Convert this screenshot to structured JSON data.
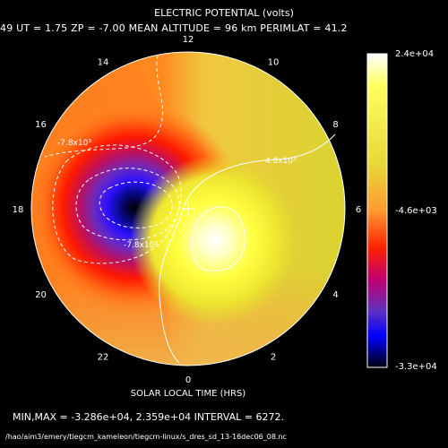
{
  "header": {
    "title": "ELECTRIC POTENTIAL (volts)",
    "subtitle": "49   UT =   1.75   ZP =   -7.00   MEAN ALTITUDE =   96 km   PERIMLAT =   41.2"
  },
  "footer": {
    "xlabel": "SOLAR LOCAL TIME (HRS)",
    "stats": "MIN,MAX = -3.286e+04, 2.359e+04 INTERVAL =       6272.",
    "path": "/hao/aim3/emery/tiegcm_kameleon/tiegcm-linux/s_dres_sd_13-16dec06_08.nc"
  },
  "colors": {
    "background": "#000000",
    "text": "#ffffff",
    "scale": [
      "#ffffff",
      "#ffff60",
      "#e8d838",
      "#ff9020",
      "#ff2000",
      "#8040a0",
      "#0000ff",
      "#000000"
    ]
  },
  "chart_data": {
    "type": "heatmap",
    "projection": "polar dial",
    "title": "ELECTRIC POTENTIAL (volts)",
    "xlabel": "SOLAR LOCAL TIME (HRS)",
    "hour_labels": [
      {
        "hour": 0,
        "label": "0"
      },
      {
        "hour": 2,
        "label": "2"
      },
      {
        "hour": 4,
        "label": "4"
      },
      {
        "hour": 6,
        "label": "6"
      },
      {
        "hour": 8,
        "label": "8"
      },
      {
        "hour": 10,
        "label": "10"
      },
      {
        "hour": 12,
        "label": "12"
      },
      {
        "hour": 14,
        "label": "14"
      },
      {
        "hour": 16,
        "label": "16"
      },
      {
        "hour": 18,
        "label": "18"
      },
      {
        "hour": 20,
        "label": "20"
      },
      {
        "hour": 22,
        "label": "22"
      }
    ],
    "min": -32860,
    "max": 23590,
    "interval": 6272,
    "colorbar_ticks": [
      "2.4e+04",
      "-4.6e+03",
      "-3.3e+04"
    ],
    "contour_labels": [
      "-7.8x10³",
      "4.8x10³",
      "-7.8x10³"
    ],
    "extremes": [
      {
        "kind": "min",
        "local_time_hr": 18.3,
        "colatitude_fraction": 0.45,
        "value": -32860
      },
      {
        "kind": "max",
        "local_time_hr": 5.3,
        "colatitude_fraction": 0.3,
        "value": 23590
      }
    ]
  }
}
